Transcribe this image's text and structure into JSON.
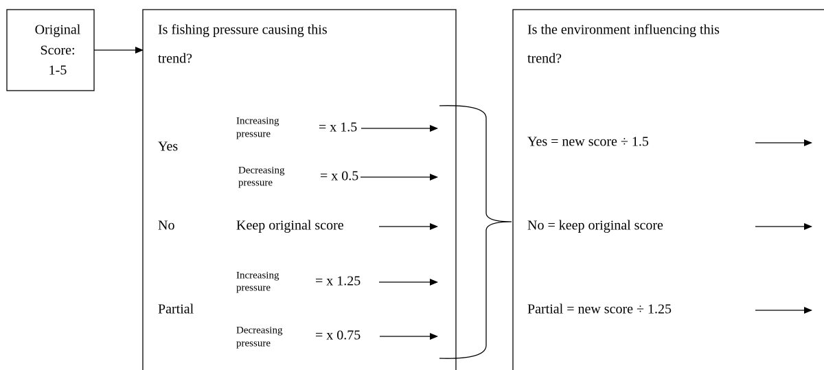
{
  "start": {
    "lines": [
      "Original",
      "Score:",
      "1-5"
    ]
  },
  "fishing": {
    "title_lines": [
      "Is fishing pressure causing this",
      "trend?"
    ],
    "yes": {
      "label": "Yes",
      "increasing": {
        "lines": [
          "Increasing",
          "pressure"
        ],
        "result": "= x 1.5"
      },
      "decreasing": {
        "lines": [
          "Decreasing",
          "pressure"
        ],
        "result": "= x 0.5"
      }
    },
    "no": {
      "label": "No",
      "result": "Keep original score"
    },
    "partial": {
      "label": "Partial",
      "increasing": {
        "lines": [
          "Increasing",
          "pressure"
        ],
        "result": "= x 1.25"
      },
      "decreasing": {
        "lines": [
          "Decreasing",
          "pressure"
        ],
        "result": "= x 0.75"
      }
    }
  },
  "environment": {
    "title_lines": [
      "Is the environment influencing this",
      "trend?"
    ],
    "options": [
      "Yes = new score ÷ 1.5",
      "No = keep original score",
      "Partial = new score ÷ 1.25"
    ]
  }
}
